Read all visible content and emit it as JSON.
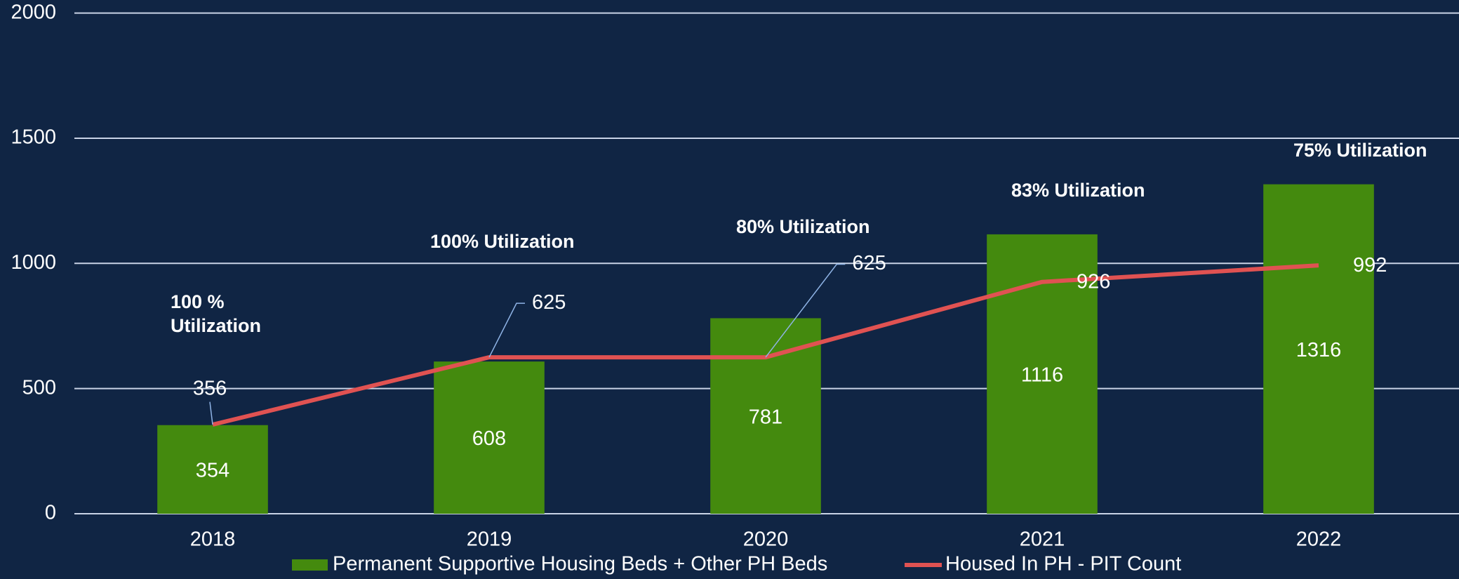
{
  "chart_data": {
    "type": "bar",
    "categories": [
      "2018",
      "2019",
      "2020",
      "2021",
      "2022"
    ],
    "series": [
      {
        "name": "Permanent Supportive Housing Beds + Other PH Beds",
        "type": "bar",
        "color": "#448a0e",
        "values": [
          354,
          608,
          781,
          1116,
          1316
        ]
      },
      {
        "name": "Housed In PH - PIT Count",
        "type": "line",
        "color": "#e05252",
        "values": [
          356,
          625,
          625,
          926,
          992
        ]
      }
    ],
    "annotations": [
      "100 % Utilization",
      "100% Utilization",
      "80% Utilization",
      "83% Utilization",
      "75% Utilization"
    ],
    "ylim": [
      0,
      2000
    ],
    "yticks": [
      0,
      500,
      1000,
      1500,
      2000
    ],
    "grid": true,
    "legend": "bottom"
  }
}
